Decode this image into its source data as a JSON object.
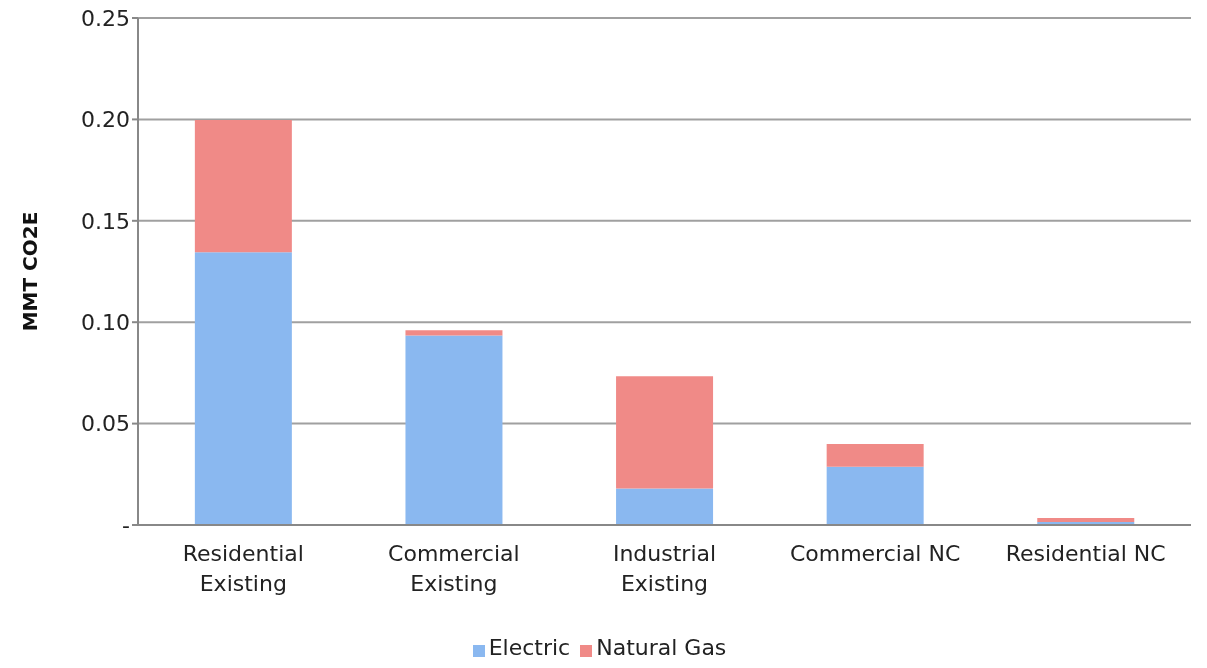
{
  "chart_data": {
    "type": "bar",
    "stacked": true,
    "ylabel": "MMT CO2E",
    "categories": [
      "Residential Existing",
      "Commercial Existing",
      "Industrial Existing",
      "Commercial NC",
      "Residential NC"
    ],
    "series": [
      {
        "name": "Electric",
        "color": "#8ab8f0",
        "values": [
          0.1345,
          0.0934,
          0.018,
          0.0287,
          0.0015
        ]
      },
      {
        "name": "Natural Gas",
        "color": "#f08a87",
        "values": [
          0.0652,
          0.0026,
          0.0554,
          0.0113,
          0.002
        ]
      }
    ],
    "ylim": [
      0,
      0.25
    ],
    "yticks": [
      {
        "value": 0,
        "label": "-"
      },
      {
        "value": 0.05,
        "label": "0.05"
      },
      {
        "value": 0.1,
        "label": "0.10"
      },
      {
        "value": 0.15,
        "label": "0.15"
      },
      {
        "value": 0.2,
        "label": "0.20"
      },
      {
        "value": 0.25,
        "label": "0.25"
      }
    ],
    "grid": "y",
    "legend": "bottom"
  }
}
